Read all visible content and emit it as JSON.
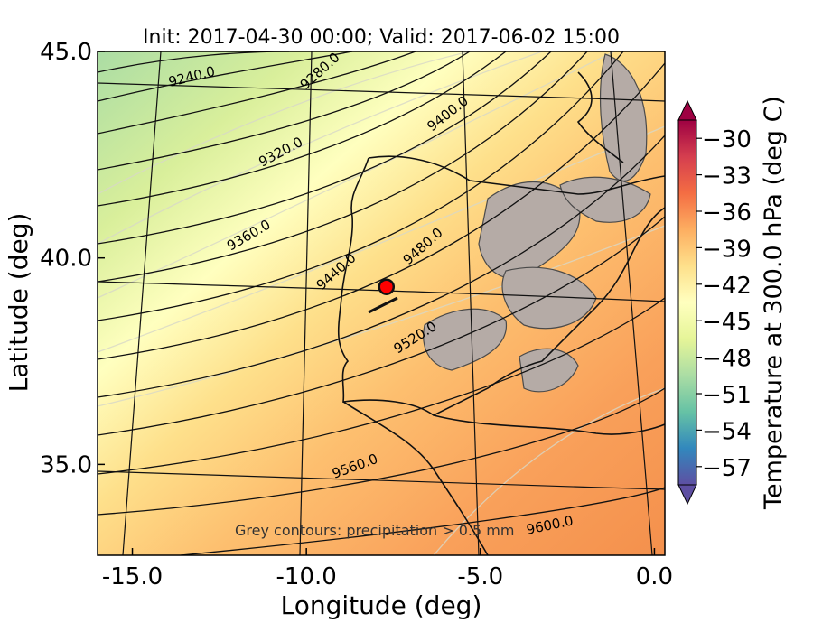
{
  "chart_data": {
    "type": "contour map",
    "title": "Init: 2017-04-30 00:00; Valid: 2017-06-02 15:00",
    "xlabel": "Longitude (deg)",
    "ylabel": "Latitude (deg)",
    "x_ticks": [
      "-15.0",
      "-10.0",
      "-5.0",
      "0.0"
    ],
    "y_ticks": [
      "45.0",
      "40.0",
      "35.0"
    ],
    "x_tick_values": [
      -15.0,
      -10.0,
      -5.0,
      0.0
    ],
    "y_tick_values": [
      45.0,
      40.0,
      35.0
    ],
    "xlim": [
      -16.0,
      0.3
    ],
    "ylim": [
      32.8,
      45.0
    ],
    "colorbar": {
      "label": "Temperature at 300.0 hPa (deg C)",
      "ticks": [
        "−30",
        "−33",
        "−36",
        "−39",
        "−42",
        "−45",
        "−48",
        "−51",
        "−54",
        "−57"
      ],
      "range": [
        -58.5,
        -28.5
      ],
      "colors": [
        "#5e4fa2",
        "#3288bd",
        "#66c2a5",
        "#abdda4",
        "#e6f598",
        "#ffffbf",
        "#fee08b",
        "#fdae61",
        "#f46d43",
        "#d53e4f",
        "#9e0142"
      ]
    },
    "height_contour_labels": [
      "9240.0",
      "9280.0",
      "9320.0",
      "9360.0",
      "9400.0",
      "9440.0",
      "9480.0",
      "9520.0",
      "9560.0",
      "9600.0"
    ],
    "annotation": "Grey contours: precipitation > 0.5 mm",
    "marker": {
      "lon": -7.7,
      "lat": 39.3,
      "color": "#ff0000"
    }
  }
}
